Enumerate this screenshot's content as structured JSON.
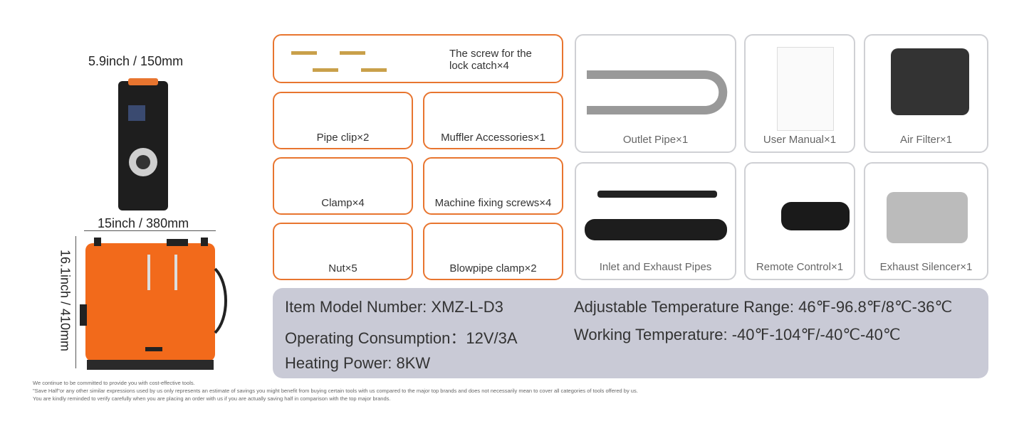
{
  "dimensions": {
    "width_top": "5.9inch / 150mm",
    "width_bottom": "15inch / 380mm",
    "height": "16.1inch / 410mm"
  },
  "accessories_orange": [
    {
      "label": "The screw for the lock catch×4"
    },
    {
      "label": "Pipe clip×2"
    },
    {
      "label": "Muffler Accessories×1"
    },
    {
      "label": "Clamp×4"
    },
    {
      "label": "Machine fixing screws×4"
    },
    {
      "label": "Nut×5"
    },
    {
      "label": "Blowpipe clamp×2"
    }
  ],
  "accessories_gray": [
    {
      "label": "Outlet Pipe×1"
    },
    {
      "label": "User Manual×1"
    },
    {
      "label": "Air Filter×1"
    },
    {
      "label": "Inlet and Exhaust Pipes"
    },
    {
      "label": "Remote Control×1"
    },
    {
      "label": "Exhaust Silencer×1"
    }
  ],
  "specs": {
    "model": "Item Model Number: XMZ-L-D3",
    "consumption": "Operating Consumption：12V/3A",
    "power": "Heating Power: 8KW",
    "temp_range": "Adjustable Temperature Range: 46℉-96.8℉/8℃-36℃",
    "working_temp": "Working Temperature: -40℉-104℉/-40℃-40℃"
  },
  "disclaimer": [
    "We continue to be committed to provide you with cost-effective tools.",
    "\"Save Half\"or any other similar expressions used by us only represents an estimate of savings you might benefit from buying certain tools with us compared to the major top brands and does not necessarily mean to cover all categories of tools offered by us.",
    "You are kindly reminded to verify carefully when you are placing an order with us if you are actually saving half in comparison with the top major brands."
  ],
  "colors": {
    "accent": "#e8752f",
    "spec_bg": "#c9cad6",
    "heater_orange": "#f26a1b"
  }
}
